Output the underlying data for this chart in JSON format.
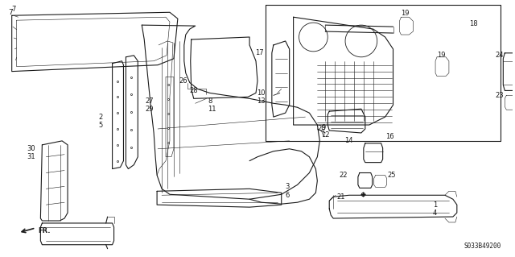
{
  "background_color": "#ffffff",
  "diagram_code": "S033B49200",
  "fig_width": 6.4,
  "fig_height": 3.19,
  "dpi": 100,
  "line_color": "#1a1a1a",
  "label_fontsize": 6.0,
  "code_fontsize": 5.5
}
